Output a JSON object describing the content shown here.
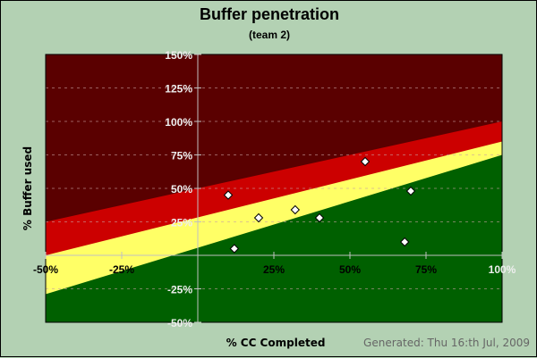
{
  "chart_data": {
    "type": "scatter",
    "title": "Buffer penetration",
    "subtitle": "(team 2)",
    "xlabel": "% CC Completed",
    "ylabel": "% Buffer used",
    "xlim": [
      -50,
      100
    ],
    "ylim": [
      -50,
      150
    ],
    "xticks": [
      -50,
      -25,
      25,
      50,
      75,
      100
    ],
    "xtick_labels": [
      "-50%",
      "-25%",
      "25%",
      "50%",
      "75%",
      "100%"
    ],
    "yticks": [
      150,
      125,
      100,
      75,
      50,
      25,
      -25,
      -50
    ],
    "ytick_labels": [
      "150%",
      "125%",
      "100%",
      "75%",
      "50%",
      "25%",
      "-25%",
      "-50%"
    ],
    "grid": "horizontal dashed",
    "zones": [
      {
        "name": "black",
        "color": "#5a0000"
      },
      {
        "name": "red",
        "color": "#cc0000",
        "upper": [
          [
            -50,
            25
          ],
          [
            100,
            100
          ]
        ]
      },
      {
        "name": "yellow",
        "color": "#ffff66",
        "upper": [
          [
            -50,
            0
          ],
          [
            100,
            85
          ]
        ]
      },
      {
        "name": "green",
        "color": "#006000",
        "upper": [
          [
            -50,
            -29
          ],
          [
            100,
            75
          ]
        ]
      }
    ],
    "points": [
      {
        "x": 10,
        "y": 45
      },
      {
        "x": 12,
        "y": 5
      },
      {
        "x": 20,
        "y": 28
      },
      {
        "x": 32,
        "y": 34
      },
      {
        "x": 40,
        "y": 28
      },
      {
        "x": 55,
        "y": 70
      },
      {
        "x": 68,
        "y": 10
      },
      {
        "x": 70,
        "y": 48
      }
    ],
    "marker_color": "#ffffff"
  },
  "footer": {
    "generated": "Generated: Thu 16:th Jul, 2009"
  }
}
